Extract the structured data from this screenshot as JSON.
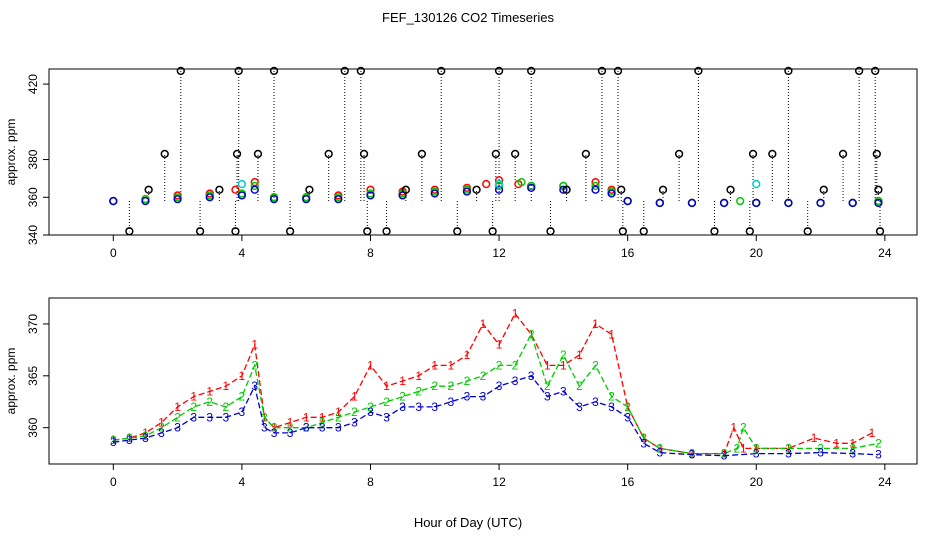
{
  "title": "FEF_130126  CO2 Timeseries",
  "xlabel": "Hour of Day (UTC)",
  "colors": {
    "s1": "#ff0000",
    "s2": "#00cc00",
    "s3": "#0000cc",
    "outlier": "#000000",
    "flag": "#00cccc"
  },
  "chart_data": [
    {
      "type": "scatter",
      "ylabel": "approx. ppm",
      "xlim": [
        -2,
        25
      ],
      "ylim": [
        340,
        428
      ],
      "xticks": [
        "0",
        "4",
        "8",
        "12",
        "16",
        "20",
        "24"
      ],
      "xtick_values": [
        0,
        4,
        8,
        12,
        16,
        20,
        24
      ],
      "yticks": [
        "340",
        "360",
        "380",
        "420"
      ],
      "ytick_values": [
        340,
        360,
        380,
        420
      ],
      "series": [
        {
          "name": "1",
          "color": "#ff0000",
          "x": [
            0,
            1,
            2,
            3,
            3.8,
            4.4,
            5,
            6,
            7,
            8,
            9,
            10,
            11,
            11.6,
            12,
            12.6,
            13,
            14,
            15,
            15.5,
            16,
            17,
            18,
            19,
            20,
            21,
            22,
            23,
            23.8
          ],
          "y": [
            358,
            359,
            361,
            362,
            364,
            368,
            360,
            360,
            361,
            364,
            363,
            364,
            365,
            367,
            369,
            367,
            366,
            366,
            368,
            364,
            358,
            357,
            357,
            357,
            357,
            357,
            357,
            357,
            358
          ]
        },
        {
          "name": "2",
          "color": "#00cc00",
          "x": [
            0,
            1,
            2,
            3,
            4,
            4.4,
            5,
            6,
            7,
            8,
            9,
            10,
            11,
            12,
            12.7,
            13,
            14,
            15,
            15.5,
            16,
            17,
            18,
            19,
            19.5,
            20,
            21,
            22,
            23,
            23.8
          ],
          "y": [
            358,
            359,
            360,
            361,
            362,
            366,
            360,
            360,
            360,
            362,
            362,
            363,
            364,
            366,
            368,
            366,
            366,
            366,
            363,
            358,
            357,
            357,
            357,
            358,
            357,
            357,
            357,
            357,
            358
          ]
        },
        {
          "name": "3",
          "color": "#0000cc",
          "x": [
            0,
            1,
            2,
            3,
            4,
            4.4,
            5,
            6,
            7,
            8,
            9,
            10,
            11,
            12,
            13,
            14,
            15,
            15.5,
            16,
            17,
            18,
            19,
            20,
            21,
            22,
            23,
            23.8
          ],
          "y": [
            358,
            358,
            359,
            360,
            361,
            364,
            359,
            359,
            359,
            361,
            361,
            362,
            363,
            364,
            365,
            364,
            364,
            362,
            358,
            357,
            357,
            357,
            357,
            357,
            357,
            357,
            357
          ]
        },
        {
          "name": "outlier",
          "color": "#000000",
          "x": [
            0.5,
            1.1,
            1.6,
            2.1,
            2.7,
            3.3,
            3.8,
            3.85,
            3.9,
            4.5,
            5.0,
            5.5,
            6.1,
            6.7,
            7.2,
            7.7,
            7.8,
            7.9,
            8.5,
            9.1,
            9.6,
            10.2,
            10.7,
            11.3,
            11.8,
            11.9,
            12.0,
            12.5,
            13.0,
            13.6,
            14.1,
            14.7,
            15.2,
            15.7,
            15.8,
            15.85,
            16.5,
            17.1,
            17.6,
            18.2,
            18.7,
            19.2,
            19.8,
            19.9,
            20.5,
            21.0,
            21.6,
            22.1,
            22.7,
            23.2,
            23.7,
            23.75,
            23.8,
            23.85
          ],
          "y": [
            342,
            364,
            383,
            427,
            342,
            364,
            342,
            383,
            427,
            383,
            427,
            342,
            364,
            383,
            427,
            427,
            383,
            342,
            342,
            364,
            383,
            427,
            342,
            364,
            342,
            383,
            427,
            383,
            427,
            342,
            364,
            383,
            427,
            427,
            364,
            342,
            342,
            364,
            383,
            427,
            342,
            364,
            342,
            383,
            383,
            427,
            342,
            364,
            383,
            427,
            427,
            383,
            364,
            342
          ]
        },
        {
          "name": "flag",
          "color": "#00cccc",
          "x": [
            4.0,
            12.0,
            20.0
          ],
          "y": [
            367,
            367,
            367
          ]
        }
      ]
    },
    {
      "type": "line",
      "ylabel": "approx. ppm",
      "xlim": [
        -2,
        25
      ],
      "ylim": [
        356.5,
        372.5
      ],
      "xticks": [
        "0",
        "4",
        "8",
        "12",
        "16",
        "20",
        "24"
      ],
      "xtick_values": [
        0,
        4,
        8,
        12,
        16,
        20,
        24
      ],
      "yticks": [
        "360",
        "365",
        "370"
      ],
      "ytick_values": [
        360,
        365,
        370
      ],
      "series": [
        {
          "name": "1",
          "color": "#ff0000",
          "x": [
            0,
            0.5,
            1.0,
            1.5,
            2.0,
            2.5,
            3.0,
            3.5,
            4.0,
            4.4,
            4.7,
            5.0,
            5.5,
            6.0,
            6.5,
            7.0,
            7.5,
            8.0,
            8.5,
            9.0,
            9.5,
            10.0,
            10.5,
            11.0,
            11.5,
            12.0,
            12.5,
            13.0,
            13.5,
            14.0,
            14.5,
            15.0,
            15.5,
            16.0,
            16.5,
            17.0,
            18.0,
            19.0,
            19.3,
            19.6,
            20.0,
            21.0,
            21.8,
            22.5,
            23.0,
            23.6
          ],
          "y": [
            358.8,
            359.0,
            359.5,
            360.5,
            362.0,
            363.0,
            363.5,
            364.0,
            365.0,
            368.0,
            361.0,
            360.0,
            360.5,
            361.0,
            361.0,
            361.5,
            363.0,
            366.0,
            364.0,
            364.5,
            365.0,
            366.0,
            366.0,
            367.0,
            370.0,
            368.0,
            371.0,
            369.0,
            366.0,
            366.0,
            367.0,
            370.0,
            369.0,
            362.0,
            359.0,
            358.0,
            357.5,
            357.5,
            360.0,
            358.0,
            358.0,
            358.0,
            359.0,
            358.5,
            358.5,
            359.5
          ]
        },
        {
          "name": "2",
          "color": "#00cc00",
          "x": [
            0,
            0.5,
            1.0,
            1.5,
            2.0,
            2.5,
            3.0,
            3.5,
            4.0,
            4.4,
            4.7,
            5.0,
            5.5,
            6.0,
            6.5,
            7.0,
            7.5,
            8.0,
            8.5,
            9.0,
            9.5,
            10.0,
            10.5,
            11.0,
            11.5,
            12.0,
            12.5,
            13.0,
            13.5,
            14.0,
            14.5,
            15.0,
            15.5,
            16.0,
            16.5,
            17.0,
            18.0,
            19.0,
            19.4,
            19.6,
            20.0,
            21.0,
            22.0,
            23.0,
            23.8
          ],
          "y": [
            358.8,
            359.0,
            359.2,
            360.0,
            361.0,
            362.0,
            362.5,
            362.0,
            363.0,
            366.0,
            361.0,
            360.0,
            360.0,
            360.0,
            360.5,
            361.0,
            361.5,
            362.0,
            362.5,
            363.0,
            363.5,
            364.0,
            364.0,
            364.5,
            365.0,
            366.0,
            366.0,
            369.0,
            364.0,
            367.0,
            364.0,
            366.0,
            363.0,
            362.0,
            359.0,
            358.0,
            357.5,
            357.5,
            358.0,
            360.0,
            358.0,
            358.0,
            358.0,
            358.0,
            358.5
          ]
        },
        {
          "name": "3",
          "color": "#0000cc",
          "x": [
            0,
            0.5,
            1.0,
            1.5,
            2.0,
            2.5,
            3.0,
            3.5,
            4.0,
            4.4,
            4.7,
            5.0,
            5.5,
            6.0,
            6.5,
            7.0,
            7.5,
            8.0,
            8.5,
            9.0,
            9.5,
            10.0,
            10.5,
            11.0,
            11.5,
            12.0,
            12.5,
            13.0,
            13.5,
            14.0,
            14.5,
            15.0,
            15.5,
            16.0,
            16.5,
            17.0,
            18.0,
            19.0,
            20.0,
            21.0,
            22.0,
            23.0,
            23.8
          ],
          "y": [
            358.6,
            358.8,
            359.0,
            359.5,
            360.0,
            361.0,
            361.0,
            361.0,
            361.5,
            364.0,
            360.0,
            359.5,
            359.5,
            360.0,
            360.0,
            360.0,
            360.5,
            361.5,
            361.0,
            362.0,
            362.0,
            362.0,
            362.5,
            363.0,
            363.0,
            364.0,
            364.5,
            365.0,
            363.0,
            363.5,
            362.0,
            362.5,
            362.0,
            361.0,
            358.5,
            357.6,
            357.4,
            357.3,
            357.5,
            357.5,
            357.6,
            357.5,
            357.4
          ]
        }
      ]
    }
  ]
}
